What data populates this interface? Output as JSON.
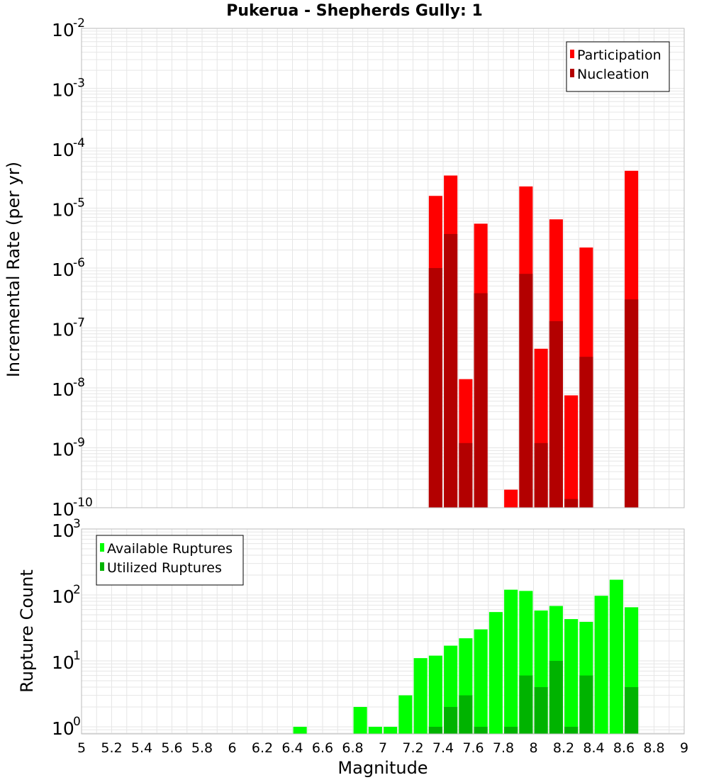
{
  "chart_data": [
    {
      "type": "bar",
      "title": "Pukerua - Shepherds Gully: 1",
      "xlabel": "",
      "ylabel": "Incremental Rate (per yr)",
      "yscale": "log",
      "xlim": [
        5,
        9
      ],
      "ylim": [
        1e-10,
        0.01
      ],
      "grid": true,
      "legend_position": "top-right",
      "x": [
        7.35,
        7.45,
        7.55,
        7.65,
        7.85,
        7.95,
        8.05,
        8.15,
        8.25,
        8.35,
        8.65
      ],
      "series": [
        {
          "name": "Participation",
          "color": "#ff0000",
          "values": [
            1.6e-05,
            3.5e-05,
            1.4e-08,
            5.5e-06,
            2e-10,
            2.3e-05,
            4.5e-08,
            6.5e-06,
            7.5e-09,
            2.2e-06,
            4.2e-05
          ]
        },
        {
          "name": "Nucleation",
          "color": "#b30000",
          "values": [
            1e-06,
            3.7e-06,
            1.2e-09,
            3.8e-07,
            null,
            8e-07,
            1.2e-09,
            1.3e-07,
            1.4e-10,
            3.3e-08,
            3e-07
          ]
        }
      ]
    },
    {
      "type": "bar",
      "title": "",
      "xlabel": "Magnitude",
      "ylabel": "Rupture Count",
      "yscale": "log",
      "xlim": [
        5,
        9
      ],
      "ylim": [
        0.78,
        1000
      ],
      "grid": true,
      "legend_position": "top-left",
      "x": [
        6.45,
        6.85,
        6.95,
        7.05,
        7.15,
        7.25,
        7.35,
        7.45,
        7.55,
        7.65,
        7.75,
        7.85,
        7.95,
        8.05,
        8.15,
        8.25,
        8.35,
        8.45,
        8.55,
        8.65
      ],
      "series": [
        {
          "name": "Available Ruptures",
          "color": "#00ff00",
          "values": [
            1,
            2,
            1,
            1,
            3,
            11,
            12,
            17,
            22,
            30,
            55,
            120,
            115,
            58,
            68,
            43,
            39,
            97,
            170,
            65
          ]
        },
        {
          "name": "Utilized Ruptures",
          "color": "#00b300",
          "values": [
            null,
            null,
            null,
            null,
            null,
            null,
            1,
            2,
            3,
            1,
            null,
            1,
            6,
            4,
            10,
            1,
            6,
            null,
            null,
            4
          ]
        }
      ]
    }
  ],
  "axis": {
    "x_ticks": [
      "5",
      "5.2",
      "5.4",
      "5.6",
      "5.8",
      "6",
      "6.2",
      "6.4",
      "6.6",
      "6.8",
      "7",
      "7.2",
      "7.4",
      "7.6",
      "7.8",
      "8",
      "8.2",
      "8.4",
      "8.6",
      "8.8",
      "9"
    ],
    "top_y_ticks": [
      {
        "base": "10",
        "exp": "-2"
      },
      {
        "base": "10",
        "exp": "-3"
      },
      {
        "base": "10",
        "exp": "-4"
      },
      {
        "base": "10",
        "exp": "-5"
      },
      {
        "base": "10",
        "exp": "-6"
      },
      {
        "base": "10",
        "exp": "-7"
      },
      {
        "base": "10",
        "exp": "-8"
      },
      {
        "base": "10",
        "exp": "-9"
      },
      {
        "base": "10",
        "exp": "-10"
      }
    ],
    "bottom_y_ticks": [
      {
        "base": "10",
        "exp": "3"
      },
      {
        "base": "10",
        "exp": "2"
      },
      {
        "base": "10",
        "exp": "1"
      },
      {
        "base": "10",
        "exp": "0"
      }
    ]
  },
  "colors": {
    "grid": "#e6e6e6",
    "plot_border": "#bbbbbb",
    "legend_border": "#000000"
  }
}
